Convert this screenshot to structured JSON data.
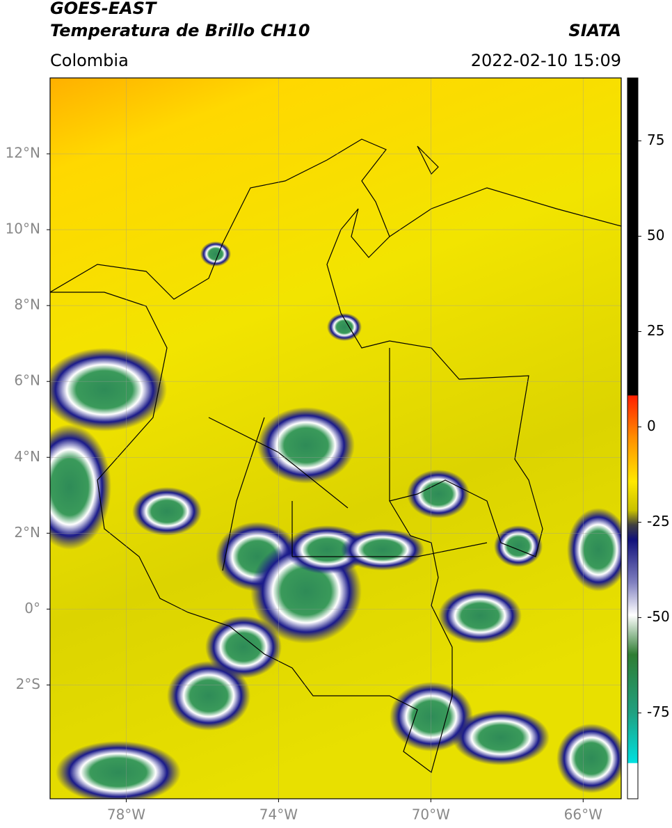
{
  "header": {
    "title": "GOES-EAST",
    "subtitle": "Temperatura de Brillo CH10",
    "region": "Colombia",
    "source": "SIATA",
    "datetime": "2022-02-10 15:09"
  },
  "map": {
    "lonlim": [
      -80,
      -65
    ],
    "latlim": [
      -5,
      14
    ],
    "lon_ticks": [
      {
        "value": -78,
        "label": "78°W"
      },
      {
        "value": -74,
        "label": "74°W"
      },
      {
        "value": -70,
        "label": "70°W"
      },
      {
        "value": -66,
        "label": "66°W"
      }
    ],
    "lat_ticks": [
      {
        "value": 12,
        "label": "12°N"
      },
      {
        "value": 10,
        "label": "10°N"
      },
      {
        "value": 8,
        "label": "8°N"
      },
      {
        "value": 6,
        "label": "6°N"
      },
      {
        "value": 4,
        "label": "4°N"
      },
      {
        "value": 2,
        "label": "2°N"
      },
      {
        "value": 0,
        "label": "0°"
      },
      {
        "value": -2,
        "label": "2°S"
      }
    ],
    "grid": true
  },
  "colorbar": {
    "lim": [
      -97.5,
      91.5
    ],
    "ticks": [
      75,
      50,
      25,
      0,
      -25,
      -50,
      -75
    ]
  }
}
